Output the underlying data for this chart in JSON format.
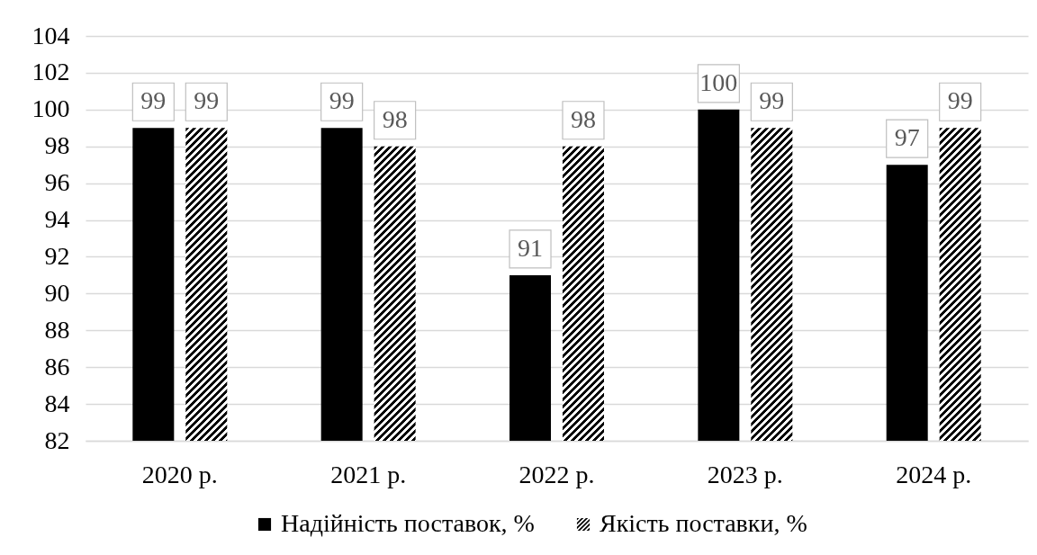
{
  "chart_data": {
    "type": "bar",
    "categories": [
      "2020 р.",
      "2021 р.",
      "2022 р.",
      "2023 р.",
      "2024 р."
    ],
    "series": [
      {
        "name": "Надійність поставок, %",
        "color": "#000000",
        "values": [
          99,
          99,
          91,
          100,
          97
        ]
      },
      {
        "name": "Якість поставки, %",
        "color": "#000000",
        "values": [
          99,
          98,
          98,
          99,
          99
        ]
      }
    ],
    "ylim": [
      82,
      104
    ],
    "yticks": [
      82,
      84,
      86,
      88,
      90,
      92,
      94,
      96,
      98,
      100,
      102,
      104
    ],
    "grid": "y",
    "legend": "bottom",
    "data_labels": true
  }
}
